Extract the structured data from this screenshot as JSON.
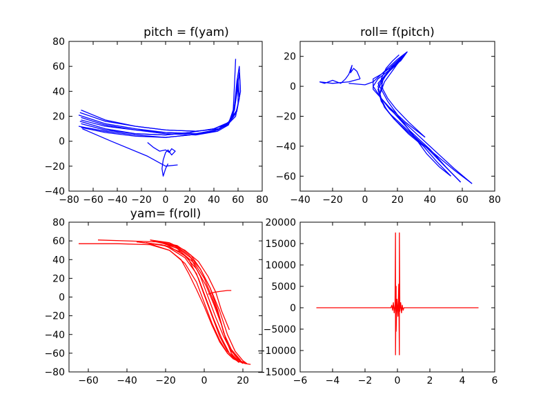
{
  "chart_data": [
    {
      "type": "line",
      "title": "pitch = f(yam)",
      "xlim": [
        -80,
        80
      ],
      "ylim": [
        -40,
        80
      ],
      "xticks": [
        -80,
        -60,
        -40,
        -20,
        0,
        20,
        40,
        60,
        80
      ],
      "yticks": [
        -40,
        -20,
        0,
        20,
        40,
        60,
        80
      ],
      "color": "#0000ff",
      "series": [
        {
          "x": [
            -70,
            -50,
            -25,
            0,
            25,
            45,
            52,
            56,
            58,
            60,
            60,
            58,
            52,
            40,
            20,
            0,
            -25,
            -50,
            -70
          ],
          "y": [
            25,
            17,
            12,
            9,
            8,
            10,
            15,
            22,
            32,
            45,
            30,
            20,
            14,
            10,
            7,
            5,
            6,
            9,
            14
          ]
        },
        {
          "x": [
            -72,
            -50,
            -25,
            0,
            25,
            42,
            52,
            57,
            59,
            61,
            62,
            59,
            52,
            40,
            20,
            0,
            -25,
            -50,
            -72
          ],
          "y": [
            21,
            14,
            10,
            7,
            6,
            9,
            14,
            25,
            40,
            55,
            40,
            24,
            14,
            8,
            5,
            3,
            5,
            8,
            12
          ]
        },
        {
          "x": [
            -70,
            -50,
            -25,
            0,
            25,
            43,
            52,
            56,
            58,
            60,
            61,
            58,
            51,
            40,
            20,
            0,
            -25,
            -50,
            -70
          ],
          "y": [
            19,
            13,
            9,
            6,
            5,
            8,
            13,
            22,
            35,
            50,
            34,
            22,
            13,
            8,
            5,
            3,
            4,
            7,
            11
          ]
        },
        {
          "x": [
            -71,
            -50,
            -25,
            0,
            25,
            44,
            53,
            57,
            59,
            61,
            62,
            59,
            52,
            40,
            20,
            0,
            -25,
            -50,
            -71
          ],
          "y": [
            23,
            16,
            12,
            9,
            8,
            10,
            16,
            28,
            48,
            60,
            40,
            25,
            15,
            10,
            7,
            5,
            6,
            10,
            16
          ]
        },
        {
          "x": [
            -70,
            -50,
            -25,
            0,
            25,
            43,
            52,
            56,
            57,
            58
          ],
          "y": [
            17,
            12,
            9,
            7,
            6,
            9,
            14,
            25,
            45,
            66
          ]
        },
        {
          "x": [
            -69,
            -45,
            -15,
            0,
            10
          ],
          "y": [
            10,
            0,
            -12,
            -20,
            -19
          ]
        },
        {
          "x": [
            -15,
            -10,
            -5,
            0,
            3,
            5,
            8,
            5,
            2,
            0,
            -2,
            -3,
            -2,
            0,
            2
          ],
          "y": [
            -1,
            -5,
            -8,
            -7,
            -9,
            -6,
            -8,
            -11,
            -7,
            -9,
            -15,
            -22,
            -28,
            -22,
            -18
          ]
        }
      ]
    },
    {
      "type": "line",
      "title": "roll= f(pitch)",
      "xlim": [
        -40,
        80
      ],
      "ylim": [
        -70,
        30
      ],
      "xticks": [
        -40,
        -20,
        0,
        20,
        40,
        60,
        80
      ],
      "yticks": [
        -60,
        -40,
        -20,
        0,
        20
      ],
      "color": "#0000ff",
      "series": [
        {
          "x": [
            -28,
            -25,
            -20,
            -15,
            -12,
            -10,
            -8,
            -9,
            -7,
            -5,
            -3
          ],
          "y": [
            3,
            2,
            4,
            2,
            5,
            8,
            14,
            9,
            12,
            10,
            5
          ]
        },
        {
          "x": [
            -3,
            -10,
            -20,
            -28
          ],
          "y": [
            5,
            3,
            2,
            3
          ]
        },
        {
          "x": [
            -10,
            0,
            5,
            10,
            20,
            26,
            22,
            15,
            10,
            5,
            5,
            10,
            15,
            25,
            40,
            55,
            66
          ],
          "y": [
            2,
            1,
            3,
            8,
            18,
            23,
            17,
            12,
            8,
            5,
            -2,
            -8,
            -15,
            -25,
            -40,
            -55,
            -65
          ]
        },
        {
          "x": [
            66,
            55,
            45,
            35,
            25,
            15,
            10,
            8,
            12,
            18,
            24,
            20,
            14,
            8,
            5
          ],
          "y": [
            -65,
            -56,
            -47,
            -38,
            -28,
            -18,
            -10,
            -2,
            6,
            14,
            20,
            15,
            10,
            5,
            0
          ]
        },
        {
          "x": [
            5,
            10,
            18,
            28,
            40,
            50,
            59
          ],
          "y": [
            0,
            -8,
            -18,
            -30,
            -42,
            -54,
            -64
          ]
        },
        {
          "x": [
            59,
            48,
            38,
            28,
            18,
            12,
            9,
            12,
            18,
            22,
            19,
            13,
            8
          ],
          "y": [
            -64,
            -52,
            -41,
            -32,
            -22,
            -14,
            -6,
            3,
            12,
            18,
            14,
            8,
            2
          ]
        },
        {
          "x": [
            8,
            14,
            22,
            30,
            38,
            46,
            53
          ],
          "y": [
            2,
            -10,
            -22,
            -33,
            -45,
            -54,
            -60
          ]
        },
        {
          "x": [
            53,
            44,
            36,
            27,
            19,
            13,
            9,
            11,
            16,
            21,
            25
          ],
          "y": [
            -60,
            -50,
            -40,
            -32,
            -23,
            -15,
            -6,
            4,
            13,
            18,
            22
          ]
        },
        {
          "x": [
            25,
            18,
            12,
            8,
            10,
            15,
            25,
            37
          ],
          "y": [
            22,
            14,
            7,
            0,
            -8,
            -14,
            -24,
            -34
          ]
        },
        {
          "x": [
            37,
            27,
            19,
            14,
            11,
            10,
            13,
            17,
            21
          ],
          "y": [
            -34,
            -24,
            -15,
            -8,
            -2,
            5,
            12,
            17,
            21
          ]
        }
      ]
    },
    {
      "type": "line",
      "title": "yam= f(roll)",
      "xlim": [
        -70,
        30
      ],
      "ylim": [
        -80,
        80
      ],
      "xticks": [
        -60,
        -40,
        -20,
        0,
        20
      ],
      "yticks": [
        -80,
        -60,
        -40,
        -20,
        0,
        20,
        40,
        60,
        80
      ],
      "color": "#ff0000",
      "series": [
        {
          "x": [
            -65,
            -45,
            -28,
            -18,
            -12,
            -8,
            -4,
            0,
            4,
            8,
            12,
            15,
            18,
            21,
            24
          ],
          "y": [
            57,
            57,
            56,
            50,
            40,
            25,
            8,
            -10,
            -30,
            -48,
            -60,
            -66,
            -69,
            -71,
            -72
          ]
        },
        {
          "x": [
            -55,
            -40,
            -25,
            -15,
            -8,
            -2,
            3,
            8,
            12,
            16,
            20,
            22
          ],
          "y": [
            61,
            60,
            59,
            55,
            45,
            30,
            10,
            -15,
            -40,
            -58,
            -68,
            -71
          ]
        },
        {
          "x": [
            22,
            16,
            12,
            8,
            4,
            0,
            -4,
            -10,
            -20,
            -35
          ],
          "y": [
            -71,
            -66,
            -58,
            -42,
            -20,
            2,
            25,
            42,
            55,
            59
          ]
        },
        {
          "x": [
            -35,
            -22,
            -12,
            -5,
            0,
            4,
            8,
            11,
            14,
            18
          ],
          "y": [
            59,
            56,
            48,
            36,
            20,
            0,
            -22,
            -44,
            -60,
            -70
          ]
        },
        {
          "x": [
            18,
            12,
            8,
            4,
            0,
            -4,
            -10,
            -18,
            -30
          ],
          "y": [
            -70,
            -60,
            -46,
            -28,
            -6,
            16,
            36,
            50,
            58
          ]
        },
        {
          "x": [
            -30,
            -18,
            -10,
            -4,
            1,
            5,
            9,
            12,
            16,
            20
          ],
          "y": [
            58,
            54,
            44,
            30,
            12,
            -8,
            -30,
            -50,
            -63,
            -71
          ]
        },
        {
          "x": [
            20,
            13,
            9,
            5,
            1,
            -3,
            -8,
            -14,
            -25
          ],
          "y": [
            -71,
            -60,
            -44,
            -24,
            -2,
            20,
            40,
            52,
            60
          ]
        },
        {
          "x": [
            -25,
            -14,
            -7,
            -2,
            3,
            7,
            10,
            14,
            19
          ],
          "y": [
            60,
            55,
            45,
            30,
            10,
            -14,
            -38,
            -56,
            -68
          ]
        },
        {
          "x": [
            19,
            14,
            10,
            6,
            2,
            -2,
            -7,
            -15,
            -28
          ],
          "y": [
            -68,
            -58,
            -42,
            -22,
            0,
            22,
            42,
            54,
            61
          ]
        },
        {
          "x": [
            -28,
            -18,
            -10,
            -3,
            2,
            6,
            9,
            13
          ],
          "y": [
            61,
            58,
            50,
            38,
            22,
            5,
            -15,
            -35
          ]
        },
        {
          "x": [
            2,
            5,
            8,
            12,
            14
          ],
          "y": [
            3,
            5,
            6,
            7,
            7
          ]
        }
      ]
    },
    {
      "type": "line",
      "title": "",
      "xlim": [
        -6,
        6
      ],
      "ylim": [
        -15000,
        20000
      ],
      "xticks": [
        -6,
        -4,
        -2,
        0,
        2,
        4,
        6
      ],
      "yticks": [
        -15000,
        -10000,
        -5000,
        0,
        5000,
        10000,
        15000,
        20000
      ],
      "color": "#ff0000",
      "series": [
        {
          "x": [
            -5,
            -0.4,
            -0.35,
            -0.3,
            -0.25,
            -0.2,
            -0.15,
            -0.12,
            -0.12,
            -0.08,
            -0.08,
            -0.03,
            0,
            0.03,
            0.08,
            0.12,
            0.12,
            0.15,
            0.2,
            0.25,
            0.3,
            0.35,
            0.4,
            5
          ],
          "y": [
            0,
            0,
            600,
            -600,
            1200,
            -1200,
            800,
            17500,
            -11000,
            5000,
            -5500,
            2000,
            0,
            -2000,
            5500,
            -11000,
            17500,
            -800,
            1200,
            -1200,
            600,
            -600,
            0,
            0
          ]
        }
      ]
    }
  ]
}
